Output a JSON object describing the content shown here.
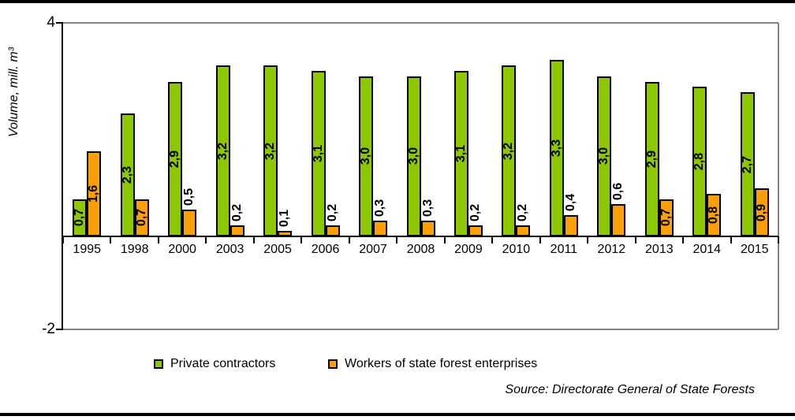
{
  "chart_data": {
    "type": "bar",
    "title": "",
    "ylabel": "Volume, mill. m³",
    "xlabel": "",
    "categories": [
      "1995",
      "1998",
      "2000",
      "2003",
      "2005",
      "2006",
      "2007",
      "2008",
      "2009",
      "2010",
      "2011",
      "2012",
      "2013",
      "2014",
      "2015"
    ],
    "series": [
      {
        "name": "Private contractors",
        "color": "#8CC702",
        "values": [
          0.7,
          2.3,
          2.9,
          3.2,
          3.2,
          3.1,
          3.0,
          3.0,
          3.1,
          3.2,
          3.3,
          3.0,
          2.9,
          2.8,
          2.7
        ],
        "labels": [
          "0,7",
          "2,3",
          "2,9",
          "3,2",
          "3,2",
          "3,1",
          "3,0",
          "3,0",
          "3,1",
          "3,2",
          "3,3",
          "3,0",
          "2,9",
          "2,8",
          "2,7"
        ]
      },
      {
        "name": "Workers of state forest enterprises",
        "color": "#FB9F08",
        "values": [
          1.6,
          0.7,
          0.5,
          0.2,
          0.1,
          0.2,
          0.3,
          0.3,
          0.2,
          0.2,
          0.4,
          0.6,
          0.7,
          0.8,
          0.9
        ],
        "labels": [
          "1,6",
          "0,7",
          "0,5",
          "0,2",
          "0,1",
          "0,2",
          "0,3",
          "0,3",
          "0,2",
          "0,2",
          "0,4",
          "0,6",
          "0,7",
          "0,8",
          "0,9"
        ]
      }
    ],
    "ylim": [
      -2,
      4
    ],
    "yticks": [
      {
        "value": 4,
        "label": "4"
      },
      {
        "value": -2,
        "label": "-2"
      }
    ],
    "grid": "horizontal gridlines at 4 and -2 only, gray; right plot border gray; baseline axis black at 0",
    "legend_position": "bottom",
    "value_label_style": "bold, rotated 90deg, decimal comma"
  },
  "source_note": "Source: Directorate General of State Forests",
  "colors": {
    "grid": "#848484",
    "axis": "#000000",
    "bar_border": "#000000",
    "frame_border": "#000000",
    "background": "#FFFFFF"
  }
}
